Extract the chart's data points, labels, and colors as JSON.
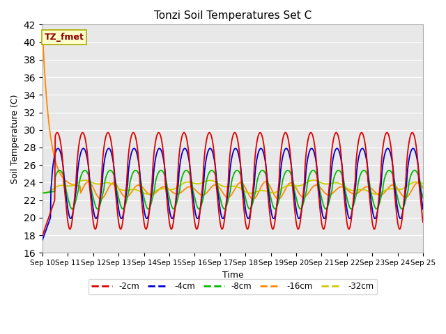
{
  "title": "Tonzi Soil Temperatures Set C",
  "xlabel": "Time",
  "ylabel": "Soil Temperature (C)",
  "ylim": [
    16,
    42
  ],
  "xlim": [
    0,
    15
  ],
  "yticks": [
    16,
    18,
    20,
    22,
    24,
    26,
    28,
    30,
    32,
    34,
    36,
    38,
    40,
    42
  ],
  "xtick_labels": [
    "Sep 10",
    "Sep 11",
    "Sep 12",
    "Sep 13",
    "Sep 14",
    "Sep 15",
    "Sep 16",
    "Sep 17",
    "Sep 18",
    "Sep 19",
    "Sep 20",
    "Sep 21",
    "Sep 22",
    "Sep 23",
    "Sep 24",
    "Sep 25"
  ],
  "colors": {
    "-2cm": "#dd0000",
    "-4cm": "#0000cc",
    "-8cm": "#00bb00",
    "-16cm": "#ff8800",
    "-32cm": "#cccc00"
  },
  "legend_labels": [
    "-2cm",
    "-4cm",
    "-8cm",
    "-16cm",
    "-32cm"
  ],
  "annotation_text": "TZ_fmet",
  "annotation_bg": "#ffffcc",
  "annotation_border": "#aaaa00",
  "annotation_fg": "#880000",
  "background_color": "#e8e8e8",
  "grid_color": "#ffffff"
}
